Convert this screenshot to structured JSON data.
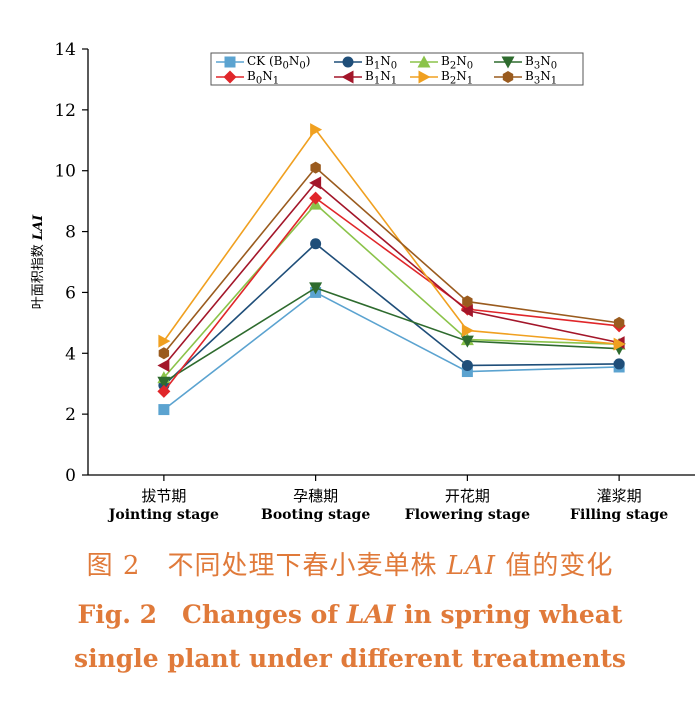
{
  "chart_data": {
    "type": "line",
    "ylabel": "叶面积指数",
    "ylabel_italic": "LAI",
    "ylim": [
      0,
      14
    ],
    "yticks": [
      "0",
      "2",
      "4",
      "6",
      "8",
      "10",
      "12",
      "14"
    ],
    "categories": [
      {
        "cn": "拔节期",
        "en": "Jointing stage"
      },
      {
        "cn": "孕穗期",
        "en": "Booting stage"
      },
      {
        "cn": "开花期",
        "en": "Flowering stage"
      },
      {
        "cn": "灌浆期",
        "en": "Filling stage"
      }
    ],
    "legend_position": "top-right",
    "series": [
      {
        "name": "CK (B0N0)",
        "label_html": "CK (B<sub>0</sub>N<sub>0</sub>)",
        "color": "#5ba3d0",
        "marker": "square",
        "values": [
          2.15,
          6.0,
          3.4,
          3.55
        ]
      },
      {
        "name": "B1N0",
        "label_html": "B<sub>1</sub>N<sub>0</sub>",
        "color": "#1f4e79",
        "marker": "circle",
        "values": [
          2.95,
          7.6,
          3.6,
          3.65
        ]
      },
      {
        "name": "B2N0",
        "label_html": "B<sub>2</sub>N<sub>0</sub>",
        "color": "#8bc34a",
        "marker": "triangle-up",
        "values": [
          3.2,
          8.9,
          4.45,
          4.3
        ]
      },
      {
        "name": "B3N0",
        "label_html": "B<sub>3</sub>N<sub>0</sub>",
        "color": "#2e6b2e",
        "marker": "triangle-down",
        "values": [
          3.05,
          6.15,
          4.4,
          4.15
        ]
      },
      {
        "name": "B0N1",
        "label_html": "B<sub>0</sub>N<sub>1</sub>",
        "color": "#e0262a",
        "marker": "diamond",
        "values": [
          2.75,
          9.1,
          5.45,
          4.9
        ]
      },
      {
        "name": "B1N1",
        "label_html": "B<sub>1</sub>N<sub>1</sub>",
        "color": "#a3162a",
        "marker": "triangle-left",
        "values": [
          3.6,
          9.6,
          5.4,
          4.35
        ]
      },
      {
        "name": "B2N1",
        "label_html": "B<sub>2</sub>N<sub>1</sub>",
        "color": "#f0a020",
        "marker": "triangle-right",
        "values": [
          4.4,
          11.35,
          4.75,
          4.3
        ]
      },
      {
        "name": "B3N1",
        "label_html": "B<sub>3</sub>N<sub>1</sub>",
        "color": "#9a5b1e",
        "marker": "hexagon",
        "values": [
          4.0,
          10.1,
          5.7,
          5.0
        ]
      }
    ]
  },
  "caption": {
    "cn_prefix": "图 2　不同处理下春小麦单株 ",
    "cn_italic": "LAI",
    "cn_suffix": " 值的变化",
    "en_prefix": "Fig. 2　Changes of ",
    "en_italic": "LAI",
    "en_suffix": " in spring wheat",
    "en_line2": "single plant under different treatments"
  }
}
